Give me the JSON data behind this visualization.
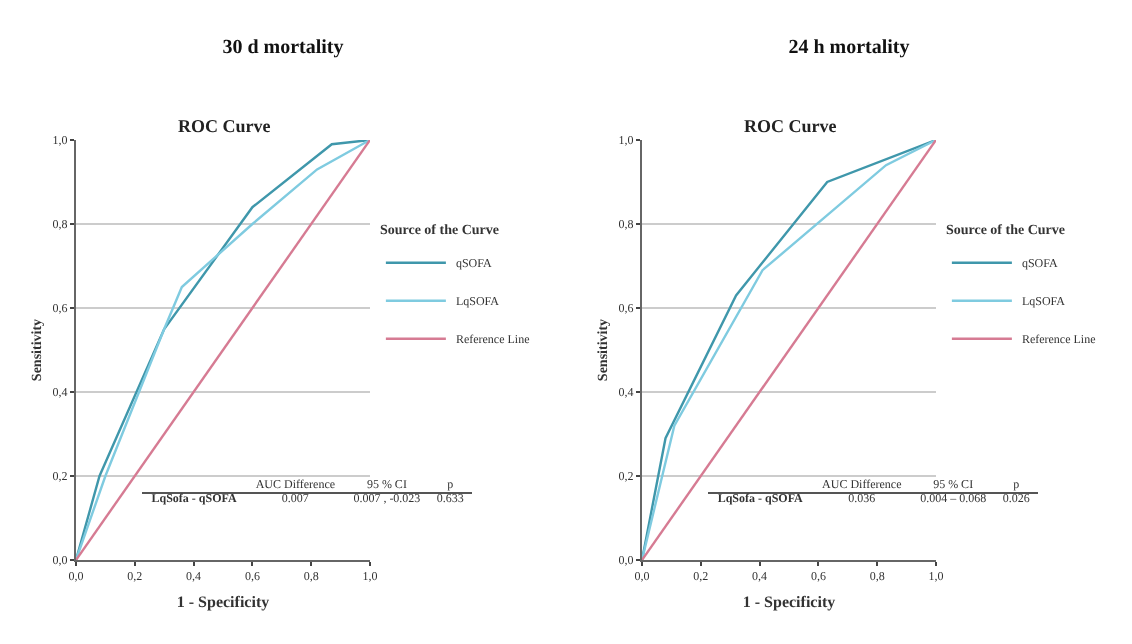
{
  "chart_data": [
    {
      "type": "line",
      "title": "30 d mortality",
      "subtitle": "ROC Curve",
      "xlabel": "1 - Specificity",
      "ylabel": "Sensitivity",
      "legend_title": "Source of the Curve",
      "series": [
        {
          "name": "qSOFA",
          "color": "#3f97ab",
          "x": [
            0,
            0.08,
            0.3,
            0.6,
            0.87,
            1
          ],
          "values": [
            0,
            0.2,
            0.55,
            0.84,
            0.99,
            1
          ]
        },
        {
          "name": "LqSOFA",
          "color": "#7fcbe0",
          "x": [
            0,
            0.1,
            0.3,
            0.36,
            0.6,
            0.82,
            1
          ],
          "values": [
            0,
            0.2,
            0.55,
            0.65,
            0.8,
            0.93,
            1
          ]
        },
        {
          "name": "Reference Line",
          "color": "#d67b93",
          "x": [
            0,
            1
          ],
          "values": [
            0,
            1
          ]
        }
      ],
      "xlim": [
        0,
        1
      ],
      "ylim": [
        0,
        1
      ],
      "xticks": [
        {
          "value": 0,
          "label": "0,0"
        },
        {
          "value": 0.2,
          "label": "0,2"
        },
        {
          "value": 0.4,
          "label": "0,4"
        },
        {
          "value": 0.6,
          "label": "0,6"
        },
        {
          "value": 0.8,
          "label": "0,8"
        },
        {
          "value": 1,
          "label": "1,0"
        }
      ],
      "yticks": [
        {
          "value": 0,
          "label": "0,0"
        },
        {
          "value": 0.2,
          "label": "0,2"
        },
        {
          "value": 0.4,
          "label": "0,4"
        },
        {
          "value": 0.6,
          "label": "0,6"
        },
        {
          "value": 0.8,
          "label": "0,8"
        },
        {
          "value": 1,
          "label": "1,0"
        }
      ],
      "grid": "y",
      "legend": "right",
      "annotations": [
        "AUC Difference",
        "95 % CI",
        "p",
        "LqSofa - qSOFA",
        "0.007",
        "0.007 , -0.023",
        "0.633"
      ]
    },
    {
      "type": "line",
      "title": "24 h mortality",
      "subtitle": "ROC Curve",
      "xlabel": "1 - Specificity",
      "ylabel": "Sensitivity",
      "legend_title": "Source of the Curve",
      "series": [
        {
          "name": "qSOFA",
          "color": "#3f97ab",
          "x": [
            0,
            0.08,
            0.32,
            0.63,
            1
          ],
          "values": [
            0,
            0.29,
            0.63,
            0.9,
            1
          ]
        },
        {
          "name": "LqSOFA",
          "color": "#7fcbe0",
          "x": [
            0,
            0.11,
            0.41,
            0.83,
            1
          ],
          "values": [
            0,
            0.32,
            0.69,
            0.94,
            1
          ]
        },
        {
          "name": "Reference Line",
          "color": "#d67b93",
          "x": [
            0,
            1
          ],
          "values": [
            0,
            1
          ]
        }
      ],
      "xlim": [
        0,
        1
      ],
      "ylim": [
        0,
        1
      ],
      "xticks": [
        {
          "value": 0,
          "label": "0,0"
        },
        {
          "value": 0.2,
          "label": "0,2"
        },
        {
          "value": 0.4,
          "label": "0,4"
        },
        {
          "value": 0.6,
          "label": "0,6"
        },
        {
          "value": 0.8,
          "label": "0,8"
        },
        {
          "value": 1,
          "label": "1,0"
        }
      ],
      "yticks": [
        {
          "value": 0,
          "label": "0,0"
        },
        {
          "value": 0.2,
          "label": "0,2"
        },
        {
          "value": 0.4,
          "label": "0,4"
        },
        {
          "value": 0.6,
          "label": "0,6"
        },
        {
          "value": 0.8,
          "label": "0,8"
        },
        {
          "value": 1,
          "label": "1,0"
        }
      ],
      "grid": "y",
      "legend": "right",
      "annotations": [
        "AUC Difference",
        "95 % CI",
        "p",
        "LqSofa - qSOFA",
        "0.036",
        "0.004 – 0.068",
        "0.026"
      ]
    }
  ]
}
